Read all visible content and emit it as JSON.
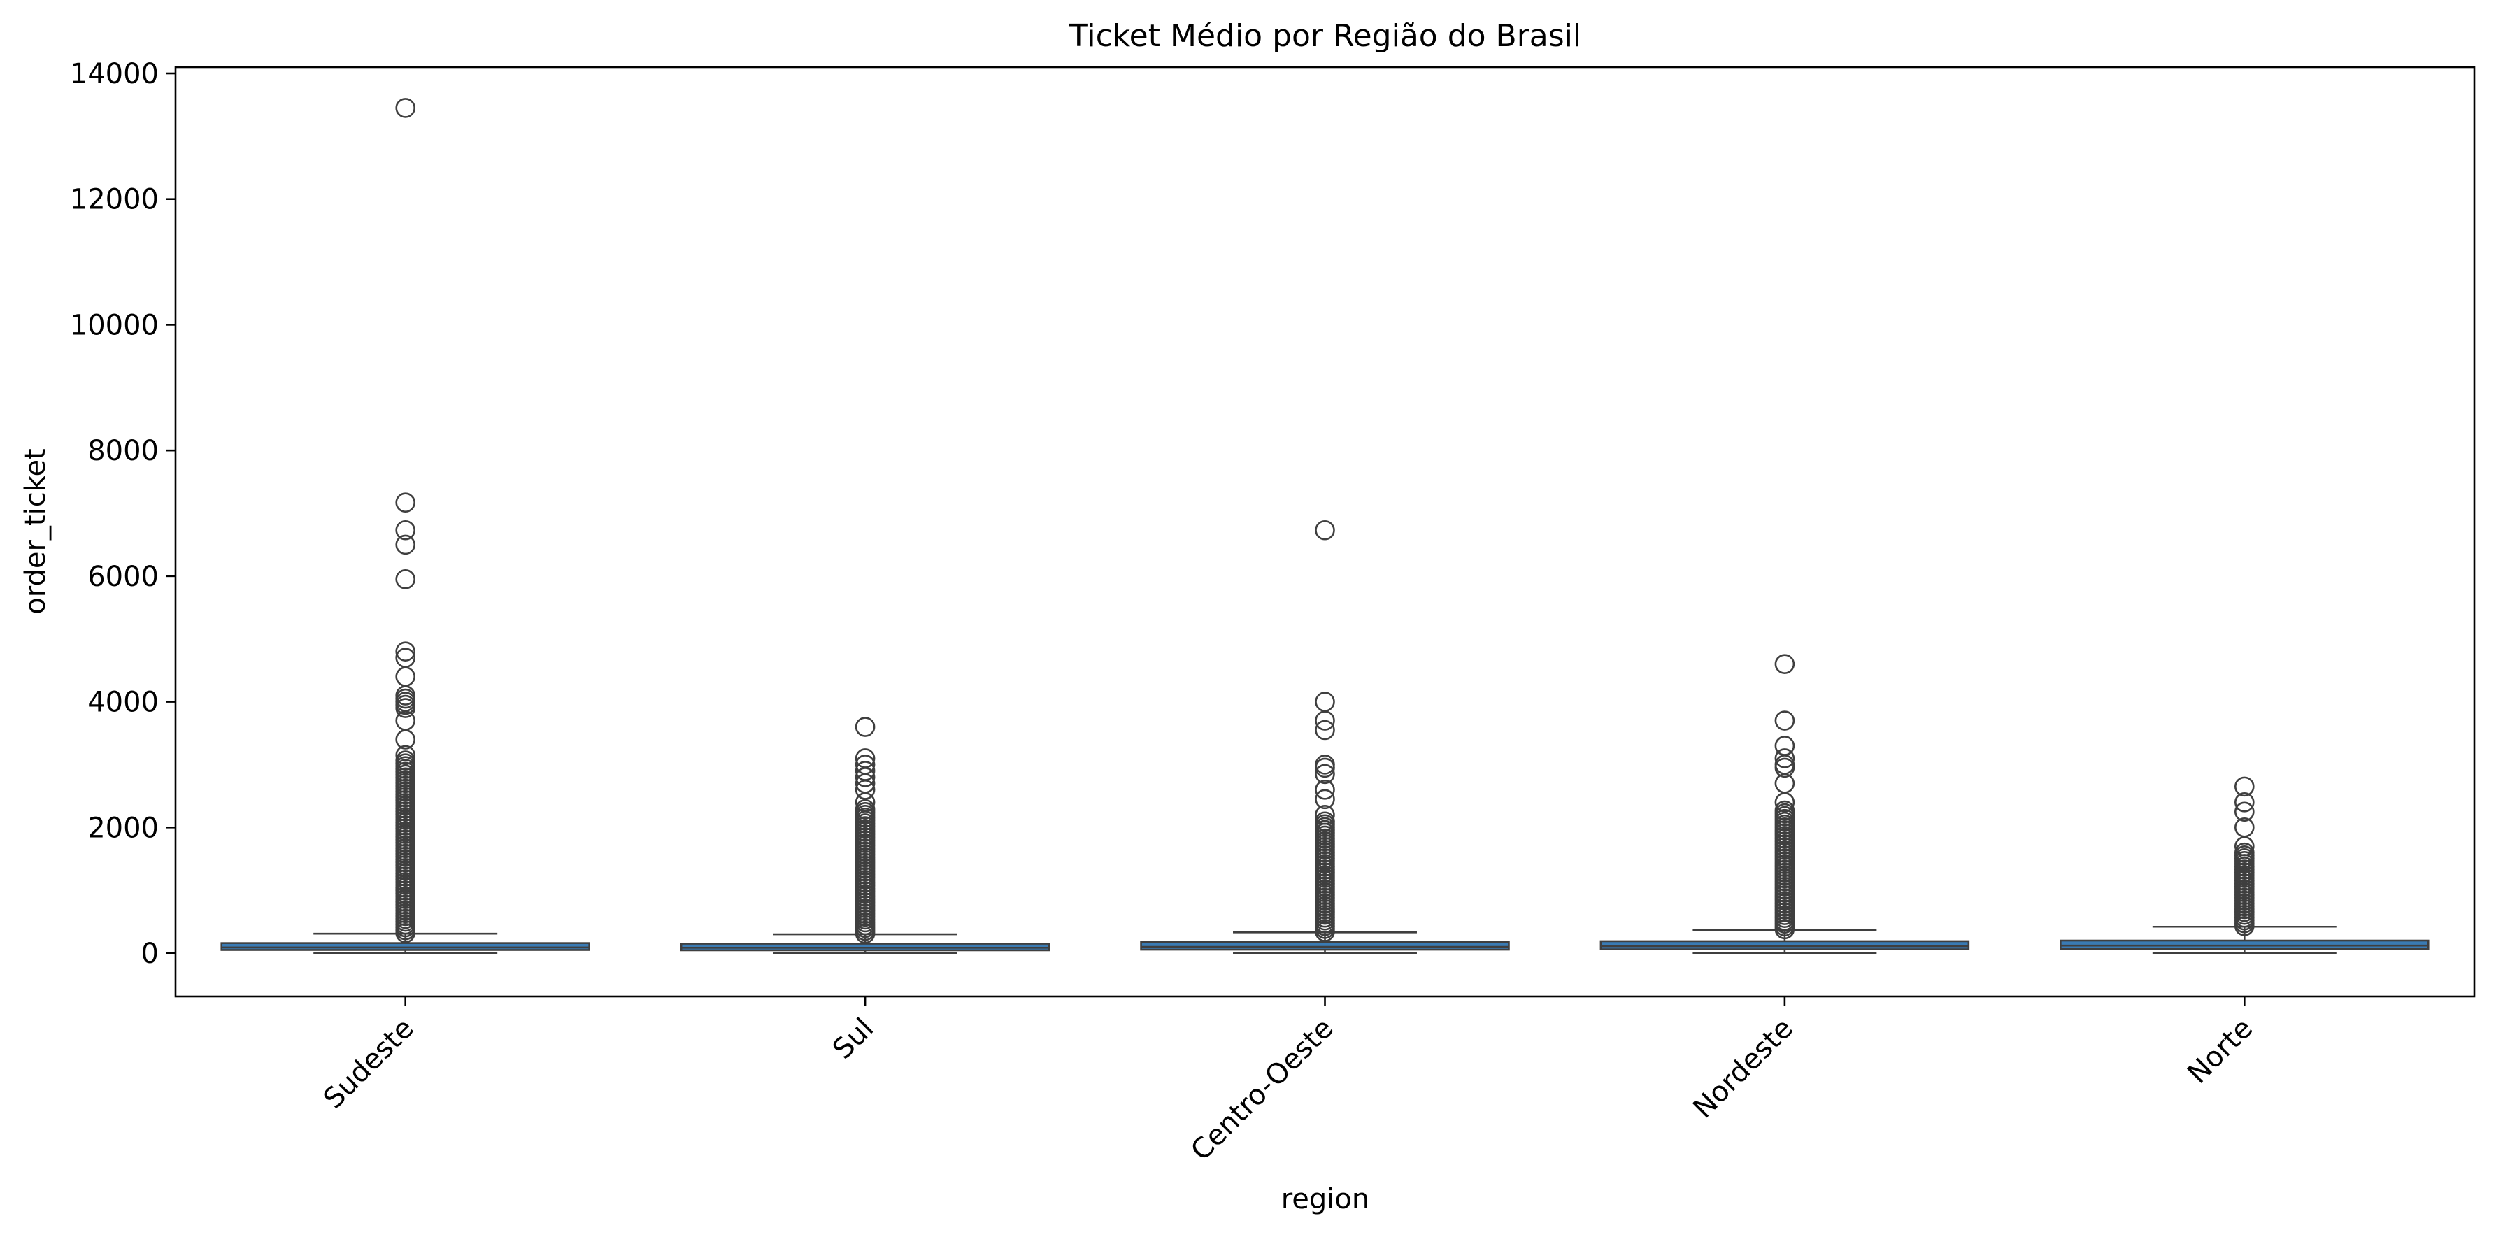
{
  "chart_data": {
    "type": "box",
    "title": "Ticket Médio por Região do Brasil",
    "xlabel": "region",
    "ylabel": "order_ticket",
    "ylim": [
      -700,
      14100
    ],
    "yticks": [
      0,
      2000,
      4000,
      6000,
      8000,
      10000,
      12000,
      14000
    ],
    "grid": false,
    "box_color": "#3a7bb4",
    "line_color": "#3f3f3f",
    "categories": [
      "Sudeste",
      "Sul",
      "Centro-Oeste",
      "Nordeste",
      "Norte"
    ],
    "boxes": [
      {
        "category": "Sudeste",
        "q1": 50,
        "median": 90,
        "q3": 160,
        "whisker_low": 0,
        "whisker_high": 310,
        "outlier_dense_range": [
          320,
          3100
        ],
        "outliers": [
          3150,
          3400,
          3700,
          3900,
          3950,
          4000,
          4050,
          4100,
          4400,
          4700,
          4800,
          5950,
          6500,
          6730,
          7170,
          13450
        ]
      },
      {
        "category": "Sul",
        "q1": 45,
        "median": 85,
        "q3": 150,
        "whisker_low": 0,
        "whisker_high": 300,
        "outlier_dense_range": [
          310,
          2300
        ],
        "outliers": [
          2400,
          2600,
          2700,
          2800,
          2900,
          3000,
          3100,
          3600
        ]
      },
      {
        "category": "Centro-Oeste",
        "q1": 55,
        "median": 100,
        "q3": 175,
        "whisker_low": 0,
        "whisker_high": 330,
        "outlier_dense_range": [
          340,
          2100
        ],
        "outliers": [
          2200,
          2450,
          2600,
          2850,
          2950,
          3000,
          3550,
          3700,
          4000,
          6730
        ]
      },
      {
        "category": "Nordeste",
        "q1": 60,
        "median": 110,
        "q3": 190,
        "whisker_low": 0,
        "whisker_high": 370,
        "outlier_dense_range": [
          380,
          2300
        ],
        "outliers": [
          2400,
          2700,
          2950,
          3000,
          3100,
          3300,
          3700,
          4600
        ]
      },
      {
        "category": "Norte",
        "q1": 65,
        "median": 120,
        "q3": 200,
        "whisker_low": 0,
        "whisker_high": 420,
        "outlier_dense_range": [
          430,
          1600
        ],
        "outliers": [
          1700,
          2000,
          2250,
          2400,
          2650
        ]
      }
    ]
  }
}
